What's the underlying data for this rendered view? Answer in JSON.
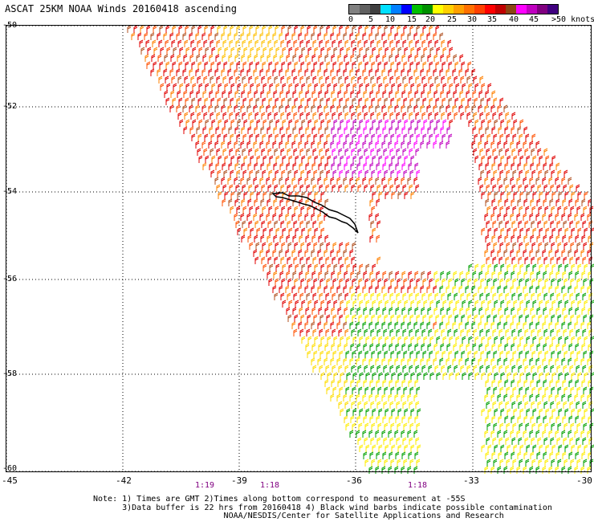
{
  "title": "ASCAT 25KM NOAA Winds 20160418 ascending",
  "scale": {
    "labels": [
      "0",
      "5",
      "10",
      "15",
      "20",
      "25",
      "30",
      "35",
      "40",
      "45",
      ">50 knots"
    ],
    "colors": [
      "#808080",
      "#606060",
      "#404040",
      "#00e0ff",
      "#0080ff",
      "#0000ff",
      "#00c000",
      "#009000",
      "#ffff00",
      "#ffd000",
      "#ffa000",
      "#ff7000",
      "#ff4000",
      "#ff0000",
      "#c00000",
      "#8b4513",
      "#ff00ff",
      "#c000c0",
      "#800080",
      "#400080"
    ]
  },
  "lat_labels": [
    "-50",
    "-52",
    "-54",
    "-56",
    "-58",
    "-60"
  ],
  "lon_labels": [
    "-45",
    "-42",
    "-39",
    "-36",
    "-33",
    "-30"
  ],
  "time_labels": [
    "1:19",
    "1:18",
    "1:18"
  ],
  "notes": [
    "Note: 1) Times are GMT 2)Times along bottom correspond to measurement at -55S",
    "      3)Data buffer is 22 hrs from 20160418 4) Black wind barbs indicate possible contamination",
    "                           NOAA/NESDIS/Center for Satellite Applications and Research"
  ],
  "map": {
    "lat_range": [
      -60,
      -50
    ],
    "lon_range": [
      -45,
      -30
    ],
    "grid": "dotted",
    "land": "South Georgia"
  }
}
